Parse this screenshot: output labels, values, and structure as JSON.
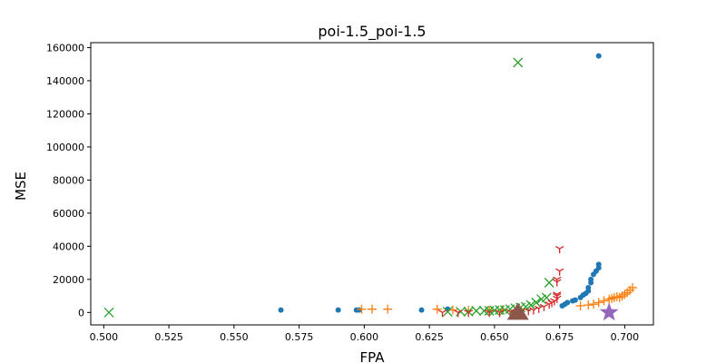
{
  "chart_data": {
    "type": "scatter",
    "title": "poi-1.5_poi-1.5",
    "xlabel": "FPA",
    "ylabel": "MSE",
    "xlim": [
      0.495,
      0.711
    ],
    "ylim": [
      -7500,
      163000
    ],
    "xticks": [
      0.5,
      0.525,
      0.55,
      0.575,
      0.6,
      0.625,
      0.65,
      0.675,
      0.7
    ],
    "xtick_labels": [
      "0.500",
      "0.525",
      "0.550",
      "0.575",
      "0.600",
      "0.625",
      "0.650",
      "0.675",
      "0.700"
    ],
    "yticks": [
      0,
      20000,
      40000,
      60000,
      80000,
      100000,
      120000,
      140000,
      160000
    ],
    "ytick_labels": [
      "0",
      "20000",
      "40000",
      "60000",
      "80000",
      "100000",
      "120000",
      "140000",
      "160000"
    ],
    "grid": false,
    "series": [
      {
        "marker": "circle",
        "color": "#1f77b4",
        "points": [
          [
            0.568,
            1500
          ],
          [
            0.59,
            1500
          ],
          [
            0.597,
            1500
          ],
          [
            0.598,
            1500
          ],
          [
            0.622,
            1500
          ],
          [
            0.632,
            2000
          ],
          [
            0.676,
            4000
          ],
          [
            0.677,
            5000
          ],
          [
            0.678,
            6000
          ],
          [
            0.68,
            7000
          ],
          [
            0.681,
            7500
          ],
          [
            0.683,
            9000
          ],
          [
            0.684,
            10500
          ],
          [
            0.685,
            11500
          ],
          [
            0.686,
            13000
          ],
          [
            0.686,
            15000
          ],
          [
            0.687,
            18000
          ],
          [
            0.687,
            20000
          ],
          [
            0.688,
            23000
          ],
          [
            0.689,
            25000
          ],
          [
            0.69,
            27000
          ],
          [
            0.69,
            29000
          ],
          [
            0.69,
            155000
          ]
        ]
      },
      {
        "marker": "plus",
        "color": "#ff7f0e",
        "points": [
          [
            0.599,
            2000
          ],
          [
            0.603,
            2000
          ],
          [
            0.609,
            2000
          ],
          [
            0.628,
            2000
          ],
          [
            0.634,
            1500
          ],
          [
            0.64,
            1200
          ],
          [
            0.648,
            1200
          ],
          [
            0.653,
            1500
          ],
          [
            0.683,
            4000
          ],
          [
            0.686,
            4500
          ],
          [
            0.688,
            5000
          ],
          [
            0.69,
            6000
          ],
          [
            0.692,
            7000
          ],
          [
            0.694,
            8000
          ],
          [
            0.695,
            8500
          ],
          [
            0.696,
            9000
          ],
          [
            0.697,
            9500
          ],
          [
            0.698,
            9000
          ],
          [
            0.699,
            10000
          ],
          [
            0.7,
            11000
          ],
          [
            0.701,
            12000
          ],
          [
            0.702,
            13500
          ],
          [
            0.703,
            15000
          ]
        ]
      },
      {
        "marker": "x",
        "color": "#2ca02c",
        "points": [
          [
            0.502,
            0
          ],
          [
            0.632,
            500
          ],
          [
            0.637,
            500
          ],
          [
            0.64,
            500
          ],
          [
            0.643,
            1000
          ],
          [
            0.646,
            1000
          ],
          [
            0.648,
            1000
          ],
          [
            0.65,
            1200
          ],
          [
            0.652,
            1500
          ],
          [
            0.654,
            1500
          ],
          [
            0.656,
            2000
          ],
          [
            0.658,
            2500
          ],
          [
            0.66,
            3000
          ],
          [
            0.662,
            3500
          ],
          [
            0.664,
            4500
          ],
          [
            0.666,
            6000
          ],
          [
            0.668,
            8000
          ],
          [
            0.67,
            9000
          ],
          [
            0.671,
            18000
          ],
          [
            0.659,
            151000
          ]
        ]
      },
      {
        "marker": "tri_down",
        "color": "#d62728",
        "points": [
          [
            0.63,
            0
          ],
          [
            0.636,
            0
          ],
          [
            0.64,
            0
          ],
          [
            0.648,
            0
          ],
          [
            0.652,
            0
          ],
          [
            0.656,
            500
          ],
          [
            0.66,
            500
          ],
          [
            0.663,
            1000
          ],
          [
            0.665,
            1500
          ],
          [
            0.667,
            2500
          ],
          [
            0.669,
            3500
          ],
          [
            0.671,
            5000
          ],
          [
            0.672,
            6000
          ],
          [
            0.673,
            7000
          ],
          [
            0.674,
            8500
          ],
          [
            0.674,
            10000
          ],
          [
            0.674,
            11000
          ],
          [
            0.674,
            18500
          ],
          [
            0.674,
            20000
          ],
          [
            0.675,
            25000
          ],
          [
            0.675,
            38500
          ]
        ]
      },
      {
        "marker": "triangle",
        "color": "#8c564b",
        "points": [
          [
            0.659,
            0
          ]
        ]
      },
      {
        "marker": "star",
        "color": "#9467bd",
        "points": [
          [
            0.694,
            0
          ]
        ]
      }
    ]
  }
}
